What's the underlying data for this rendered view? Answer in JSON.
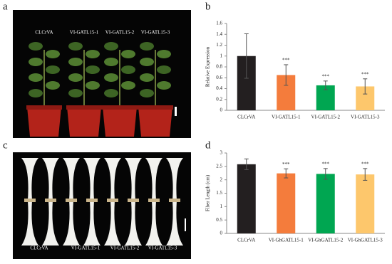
{
  "panel_labels": [
    "a",
    "b",
    "c",
    "d"
  ],
  "photo_a": {
    "labels": [
      "CLCrVA",
      "VI-GATL15-1",
      "VI-GATL15-2",
      "VI-GATL15-3"
    ]
  },
  "photo_c": {
    "labels": [
      "CLCrVA",
      "VI-GATL15-1",
      "VI-GATL15-2",
      "VI-GATL15-3"
    ]
  },
  "chart_data": [
    {
      "type": "bar",
      "y_label": "Relative Expression",
      "categories": [
        "CLCrVA",
        "VI-GATL15-1",
        "VI-GATL15-2",
        "VI-GATL15-3"
      ],
      "values": [
        1.0,
        0.65,
        0.46,
        0.44
      ],
      "errors": [
        0.41,
        0.19,
        0.08,
        0.14
      ],
      "colors": [
        "#231f20",
        "#f47c3c",
        "#00a651",
        "#fdc76c"
      ],
      "significance": [
        null,
        "***",
        "***",
        "***"
      ],
      "ylim": [
        0,
        1.6
      ],
      "yticks": [
        0,
        0.2,
        0.4,
        0.6,
        0.8,
        1,
        1.2,
        1.4,
        1.6
      ]
    },
    {
      "type": "bar",
      "y_label": "Fiber Length (cm)",
      "categories": [
        "CLCrVA",
        "VI-GhGATL15-1",
        "VI-GhGATL15-2",
        "VI-GhGATL15-3"
      ],
      "values": [
        2.58,
        2.24,
        2.22,
        2.2
      ],
      "errors": [
        0.2,
        0.17,
        0.2,
        0.22
      ],
      "colors": [
        "#231f20",
        "#f47c3c",
        "#00a651",
        "#fdc76c"
      ],
      "significance": [
        null,
        "***",
        "***",
        "***"
      ],
      "ylim": [
        0,
        3
      ],
      "yticks": [
        0,
        0.5,
        1,
        1.5,
        2,
        2.5,
        3
      ]
    }
  ]
}
